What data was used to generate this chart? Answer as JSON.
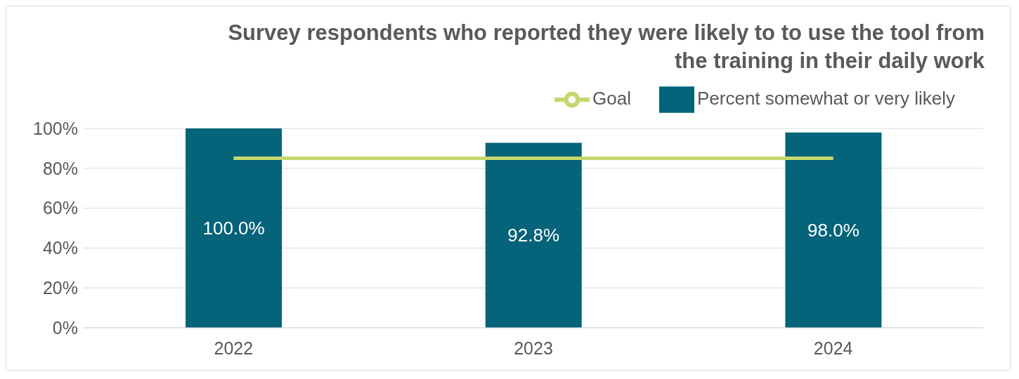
{
  "chart_data": {
    "type": "bar",
    "title": "Survey respondents who reported they were likely to to use the tool from the training in their daily work",
    "categories": [
      "2022",
      "2023",
      "2024"
    ],
    "series": [
      {
        "name": "Percent somewhat or very likely",
        "color": "#05637a",
        "values": [
          100,
          92.8,
          98
        ],
        "value_labels": [
          "100.0%",
          "92.8%",
          "98.0%"
        ]
      },
      {
        "name": "Goal",
        "type": "line",
        "color": "#c5d86d",
        "values": [
          85,
          85,
          85
        ],
        "marker": "none"
      }
    ],
    "ylim": [
      0,
      100
    ],
    "yticks": [
      {
        "value": 0,
        "label": "0%"
      },
      {
        "value": 20,
        "label": "20%"
      },
      {
        "value": 40,
        "label": "40%"
      },
      {
        "value": 60,
        "label": "60%"
      },
      {
        "value": 80,
        "label": "80%"
      },
      {
        "value": 100,
        "label": "100%"
      }
    ],
    "grid": "y",
    "legend": "top right"
  }
}
